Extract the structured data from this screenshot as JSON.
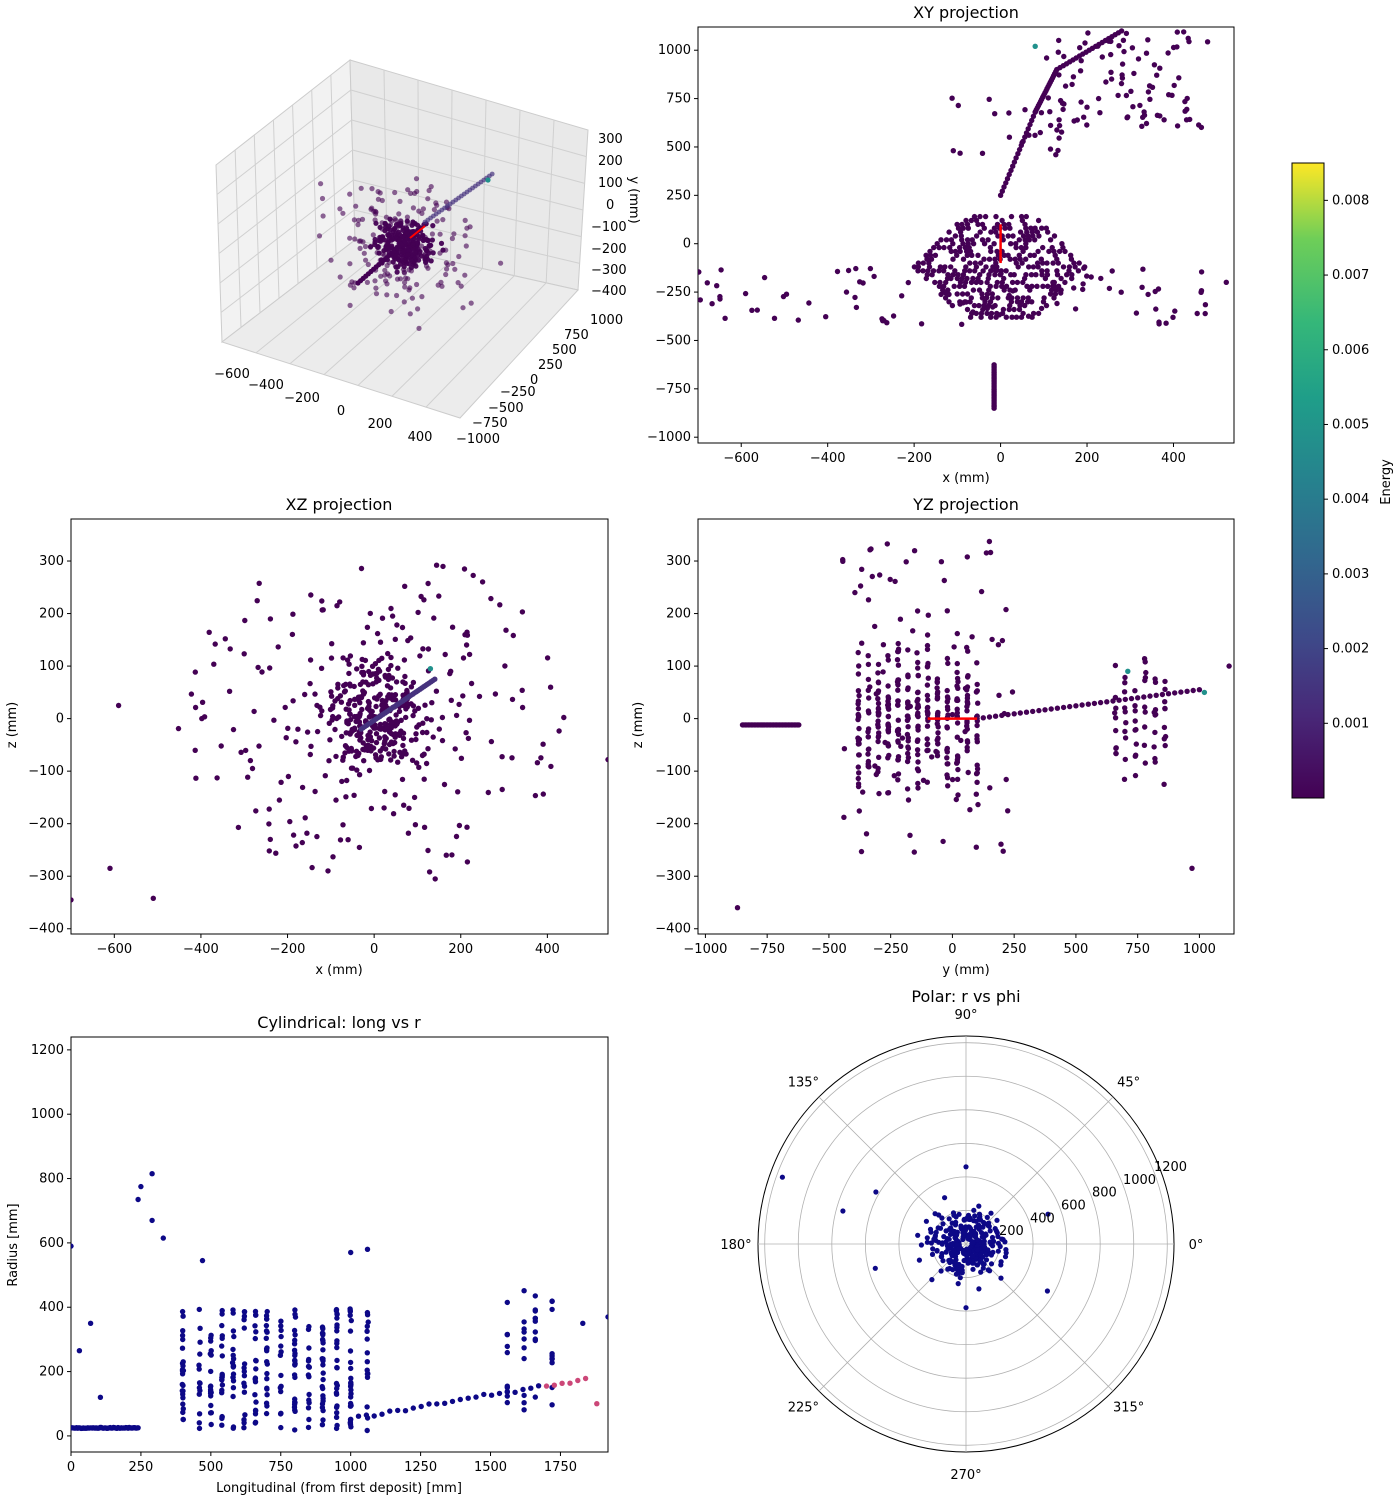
{
  "chart_data": [
    {
      "type": "scatter",
      "panel": "3d",
      "title": "",
      "xlabel": "",
      "ylabel": "",
      "zlabel": "y (mm)",
      "x_ticks": [
        "−600",
        "−400",
        "−200",
        "0",
        "200",
        "400"
      ],
      "y_ticks": [
        "1000",
        "750",
        "500",
        "250",
        "0",
        "−250",
        "−500",
        "−750",
        "−1000"
      ],
      "z_ticks": [
        "300",
        "200",
        "100",
        "0",
        "−100",
        "−200",
        "−300",
        "−400"
      ],
      "point_count": 420
    },
    {
      "type": "scatter",
      "panel": "xy",
      "title": "XY projection",
      "xlabel": "x (mm)",
      "ylabel": "",
      "xlim": [
        -700,
        540
      ],
      "ylim": [
        -1030,
        1120
      ],
      "x_ticks": [
        -600,
        -400,
        -200,
        0,
        200,
        400
      ],
      "y_ticks": [
        -1000,
        -750,
        -500,
        -250,
        0,
        250,
        500,
        750,
        1000
      ],
      "x_tick_labels": [
        "−600",
        "−400",
        "−200",
        "0",
        "200",
        "400"
      ],
      "y_tick_labels": [
        "−1000",
        "−750",
        "−500",
        "−250",
        "0",
        "250",
        "500",
        "750",
        "1000"
      ],
      "cluster": {
        "xmin": -200,
        "xmax": 200,
        "ymin": -380,
        "ymax": 140
      },
      "track": [
        [
          0,
          250
        ],
        [
          80,
          680
        ],
        [
          130,
          900
        ],
        [
          280,
          1100
        ]
      ],
      "vertical_line": [
        [
          -15,
          -620
        ],
        [
          -15,
          -850
        ]
      ],
      "red_segment": [
        [
          0,
          -100
        ],
        [
          0,
          100
        ]
      ]
    },
    {
      "type": "scatter",
      "panel": "xz",
      "title": "XZ projection",
      "xlabel": "x (mm)",
      "ylabel": "z (mm)",
      "xlim": [
        -700,
        540
      ],
      "ylim": [
        -410,
        380
      ],
      "x_ticks": [
        -600,
        -400,
        -200,
        0,
        200,
        400
      ],
      "y_ticks": [
        -400,
        -300,
        -200,
        -100,
        0,
        100,
        200,
        300
      ],
      "x_tick_labels": [
        "−600",
        "−400",
        "−200",
        "0",
        "200",
        "400"
      ],
      "y_tick_labels": [
        "−400",
        "−300",
        "−200",
        "−100",
        "0",
        "100",
        "200",
        "300"
      ],
      "track": [
        [
          -30,
          -20
        ],
        [
          140,
          75
        ]
      ]
    },
    {
      "type": "scatter",
      "panel": "yz",
      "title": "YZ projection",
      "xlabel": "y (mm)",
      "ylabel": "z (mm)",
      "xlim": [
        -1030,
        1140
      ],
      "ylim": [
        -410,
        380
      ],
      "x_ticks": [
        -1000,
        -750,
        -500,
        -250,
        0,
        250,
        500,
        750,
        1000
      ],
      "y_ticks": [
        -400,
        -300,
        -200,
        -100,
        0,
        100,
        200,
        300
      ],
      "x_tick_labels": [
        "−1000",
        "−750",
        "−500",
        "−250",
        "0",
        "250",
        "500",
        "750",
        "1000"
      ],
      "y_tick_labels": [
        "−400",
        "−300",
        "−200",
        "−100",
        "0",
        "100",
        "200",
        "300"
      ],
      "horizontal_line": [
        [
          -850,
          -12
        ],
        [
          -620,
          -12
        ]
      ],
      "track": [
        [
          100,
          0
        ],
        [
          1000,
          55
        ]
      ],
      "red_segment": [
        [
          -100,
          0
        ],
        [
          100,
          0
        ]
      ]
    },
    {
      "type": "scatter",
      "panel": "cyl",
      "title": "Cylindrical: long vs r",
      "xlabel": "Longitudinal (from first deposit) [mm]",
      "ylabel": "Radius [mm]",
      "xlim": [
        0,
        1920
      ],
      "ylim": [
        -50,
        1240
      ],
      "x_ticks": [
        0,
        250,
        500,
        750,
        1000,
        1250,
        1500,
        1750
      ],
      "y_ticks": [
        0,
        200,
        400,
        600,
        800,
        1000,
        1200
      ],
      "x_tick_labels": [
        "0",
        "250",
        "500",
        "750",
        "1000",
        "1250",
        "1500",
        "1750"
      ],
      "y_tick_labels": [
        "0",
        "200",
        "400",
        "600",
        "800",
        "1000",
        "1200"
      ],
      "columns": [
        400,
        460,
        500,
        540,
        580,
        620,
        660,
        700,
        750,
        800,
        850,
        900,
        950,
        1000,
        1060
      ],
      "line": [
        [
          0,
          25
        ],
        [
          240,
          25
        ]
      ]
    },
    {
      "type": "scatter",
      "panel": "polar",
      "title": "Polar: r vs phi",
      "rmax": 1240,
      "r_ticks": [
        200,
        400,
        600,
        800,
        1000,
        1200
      ],
      "r_tick_labels": [
        "200",
        "400",
        "600",
        "800",
        "1000",
        "1200"
      ],
      "theta_labels": [
        "0°",
        "45°",
        "90°",
        "135°",
        "180°",
        "225°",
        "270°",
        "315°"
      ]
    }
  ],
  "colorbar": {
    "label": "Energy",
    "min": 0.0,
    "max": 0.0085,
    "ticks": [
      0.001,
      0.002,
      0.003,
      0.004,
      0.005,
      0.006,
      0.007,
      0.008
    ],
    "tick_labels": [
      "0.001",
      "0.002",
      "0.003",
      "0.004",
      "0.005",
      "0.006",
      "0.007",
      "0.008"
    ]
  },
  "colors": {
    "viridis_dark": "#440154",
    "viridis_green": "#21918c",
    "plasma_dark": "#0d0887",
    "plasma_pink": "#cc4778",
    "red": "#ff0000"
  }
}
